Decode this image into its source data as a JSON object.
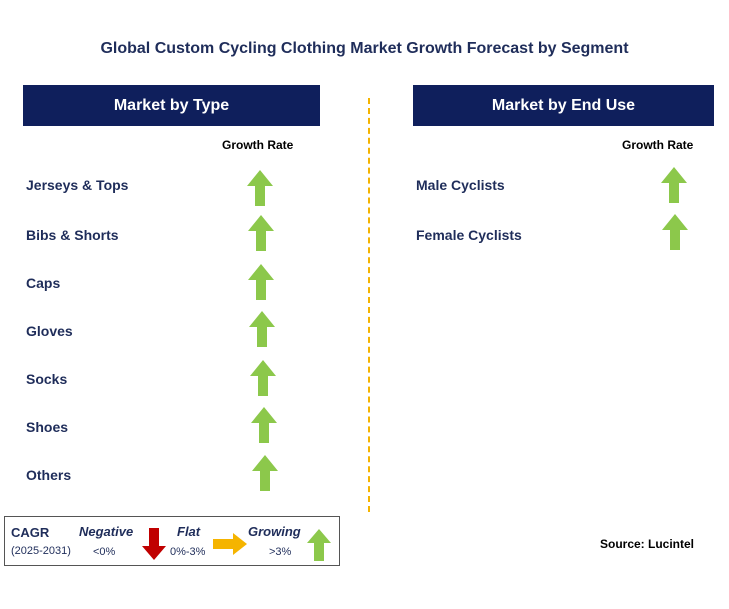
{
  "title": "Global Custom Cycling Clothing Market Growth Forecast by Segment",
  "left_panel": {
    "header": "Market by Type",
    "growth_header": "Growth Rate",
    "items": [
      {
        "label": "Jerseys & Tops",
        "trend": "growing"
      },
      {
        "label": "Bibs & Shorts",
        "trend": "growing"
      },
      {
        "label": "Caps",
        "trend": "growing"
      },
      {
        "label": "Gloves",
        "trend": "growing"
      },
      {
        "label": "Socks",
        "trend": "growing"
      },
      {
        "label": "Shoes",
        "trend": "growing"
      },
      {
        "label": "Others",
        "trend": "growing"
      }
    ]
  },
  "right_panel": {
    "header": "Market by End Use",
    "growth_header": "Growth Rate",
    "items": [
      {
        "label": "Male Cyclists",
        "trend": "growing"
      },
      {
        "label": "Female Cyclists",
        "trend": "growing"
      }
    ]
  },
  "legend": {
    "cagr_label": "CAGR",
    "period": "(2025-2031)",
    "negative_label": "Negative",
    "negative_range": "<0%",
    "flat_label": "Flat",
    "flat_range": "0%-3%",
    "growing_label": "Growing",
    "growing_range": ">3%"
  },
  "source": "Source: Lucintel",
  "colors": {
    "header_bg": "#0f1f5c",
    "growing": "#8cc84b",
    "negative": "#c00000",
    "flat": "#f5b400",
    "divider": "#f5b400"
  }
}
